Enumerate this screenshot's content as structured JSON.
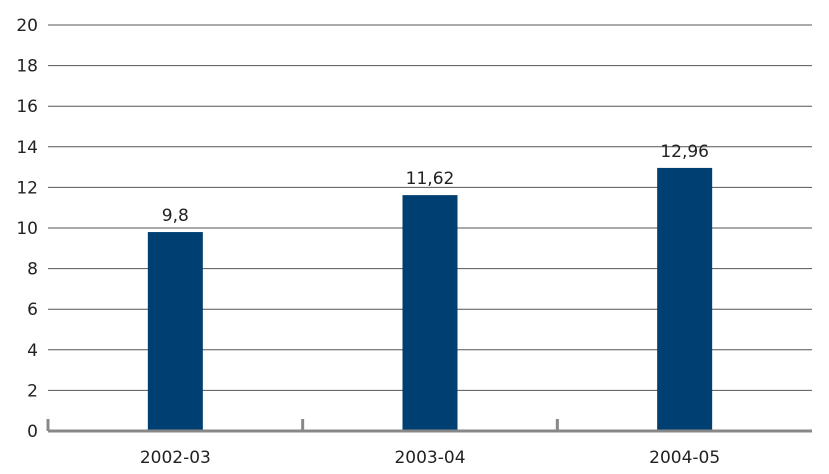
{
  "chart_data": {
    "type": "bar",
    "categories": [
      "2002-03",
      "2003-04",
      "2004-05"
    ],
    "values": [
      9.8,
      11.62,
      12.96
    ],
    "value_labels": [
      "9,8",
      "11,62",
      "12,96"
    ],
    "yticks": [
      0,
      2,
      4,
      6,
      8,
      10,
      12,
      14,
      16,
      18,
      20
    ],
    "ylim": [
      0,
      20
    ],
    "grid": true,
    "legend": "none",
    "colors": {
      "bar": "#003f72",
      "grid": "#555555",
      "axis": "#888888",
      "text": "#222222"
    }
  }
}
